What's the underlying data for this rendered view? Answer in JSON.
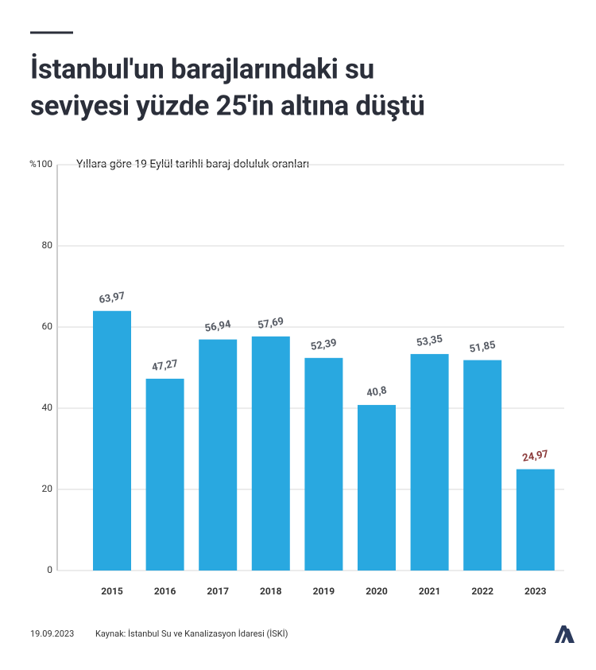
{
  "chart_data": {
    "type": "bar",
    "title": [
      "İstanbul'un barajlarındaki su",
      "seviyesi yüzde 25'in altına düştü"
    ],
    "subtitle": "Yıllara göre 19 Eylül tarihli baraj doluluk oranları",
    "categories": [
      "2015",
      "2016",
      "2017",
      "2018",
      "2019",
      "2020",
      "2021",
      "2022",
      "2023"
    ],
    "values": [
      63.97,
      47.27,
      56.94,
      57.69,
      52.39,
      40.8,
      53.35,
      51.85,
      24.97
    ],
    "value_labels": [
      "63,97",
      "47,27",
      "56,94",
      "57,69",
      "52,39",
      "40,8",
      "53,35",
      "51,85",
      "24,97"
    ],
    "value_label_colors": [
      "#555a63",
      "#555a63",
      "#555a63",
      "#555a63",
      "#555a63",
      "#555a63",
      "#555a63",
      "#555a63",
      "#8b3a3a"
    ],
    "color": "#29a8e0",
    "ylim": [
      0,
      100
    ],
    "yticks": [
      0,
      20,
      40,
      60,
      80,
      {
        "value": 100,
        "label": "%100"
      }
    ],
    "grid": true,
    "date": "19.09.2023",
    "source": "Kaynak: İstanbul Su ve Kanalizasyon İdaresi (İSKİ)"
  }
}
